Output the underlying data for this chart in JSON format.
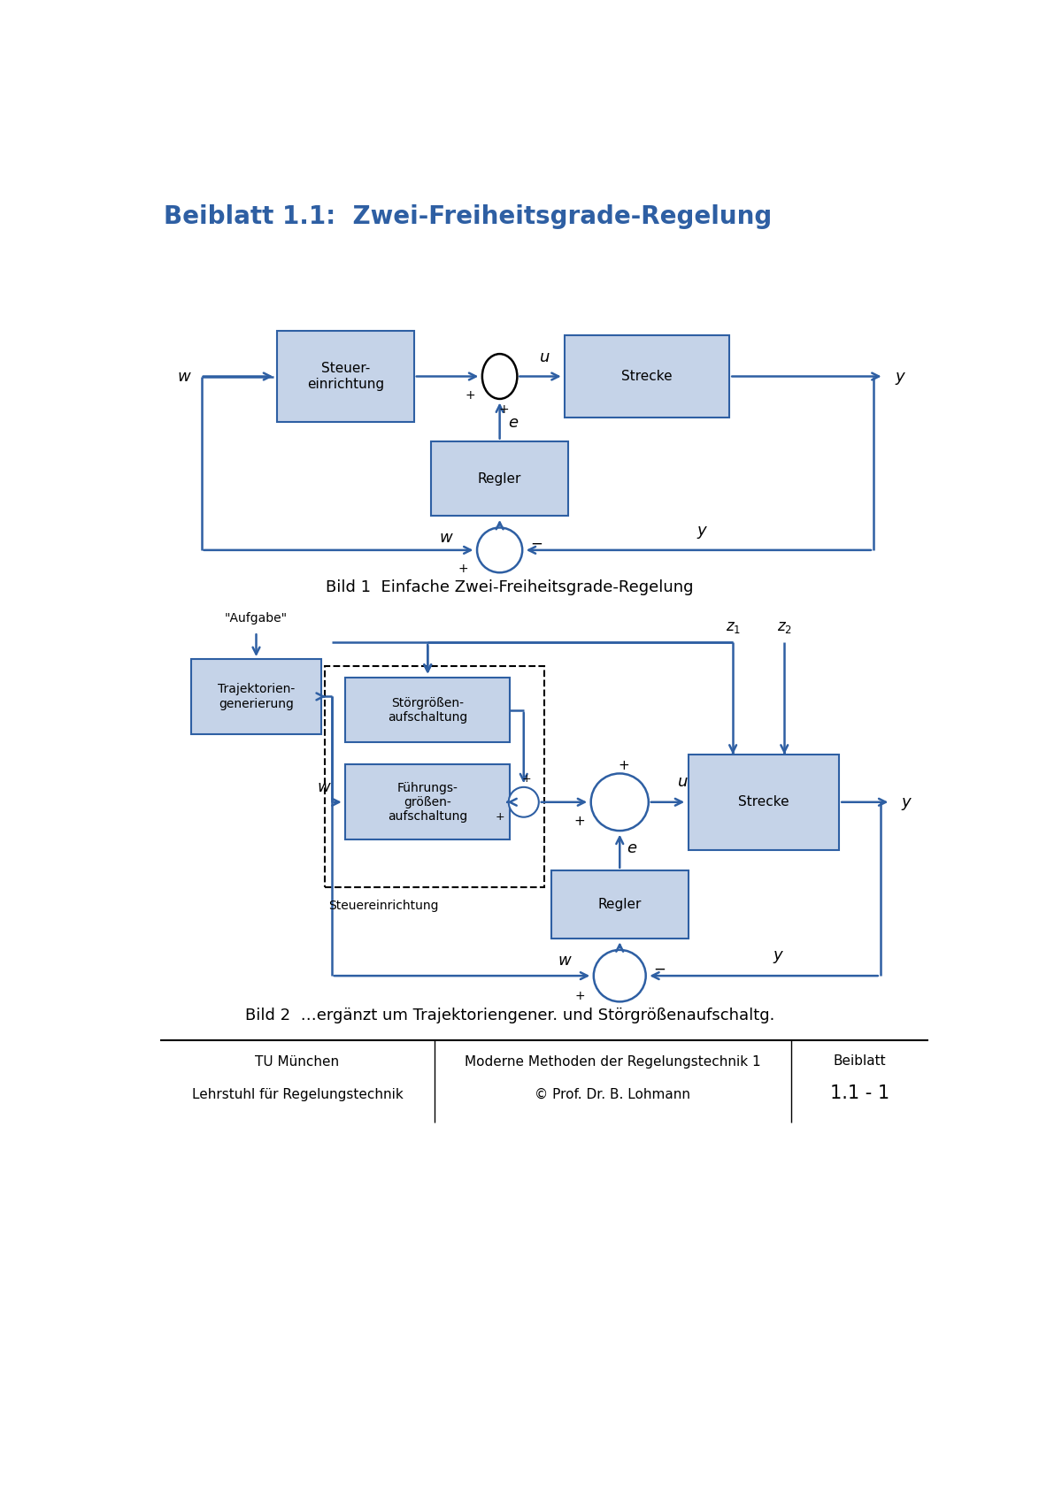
{
  "title": "Beiblatt 1.1:  Zwei-Freiheitsgrade-Regelung",
  "title_color": "#2E5FA3",
  "title_fontsize": 20,
  "box_fill": "#C5D3E8",
  "box_edge": "#2E5FA3",
  "arrow_color": "#2E5FA3",
  "line_color": "#2E5FA3",
  "caption1": "Bild 1  Einfache Zwei-Freiheitsgrade-Regelung",
  "caption2": "Bild 2  …ergänzt um Trajektoriengener. und Störgrößenaufschaltg.",
  "footer_left1": "TU München",
  "footer_left2": "Lehrstuhl für Regelungstechnik",
  "footer_mid1": "Moderne Methoden der Regelungstechnik 1",
  "footer_mid2": "© Prof. Dr. B. Lohmann",
  "footer_right1": "Beiblatt",
  "footer_right2": "1.1 - 1"
}
